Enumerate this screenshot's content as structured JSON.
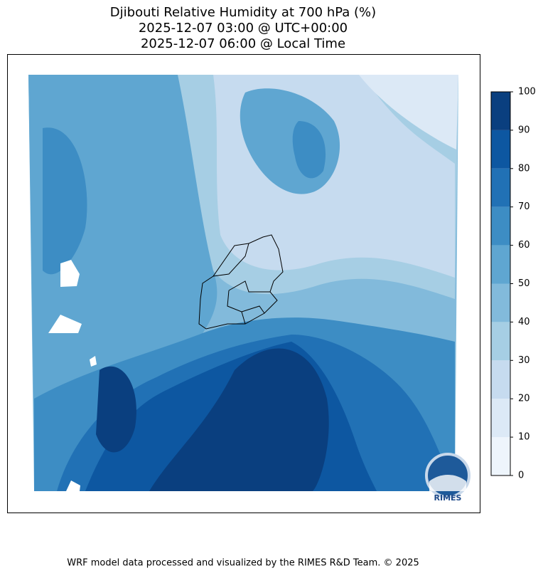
{
  "title": [
    "Djibouti Relative Humidity at 700 hPa (%)",
    "2025-12-07 03:00 @ UTC+00:00",
    "2025-12-07 06:00 @ Local Time"
  ],
  "colorbar": {
    "levels": [
      0,
      10,
      20,
      30,
      40,
      50,
      60,
      70,
      80,
      90,
      100
    ],
    "colors": [
      "#eef5fc",
      "#dce9f6",
      "#c6dbef",
      "#a6cee4",
      "#82badb",
      "#5fa6d1",
      "#3d8dc4",
      "#2171b5",
      "#0d57a1",
      "#0a3f7f"
    ]
  },
  "logo": "RIMES",
  "footer": "WRF model data processed and visualized by the RIMES R&D Team. © 2025"
}
